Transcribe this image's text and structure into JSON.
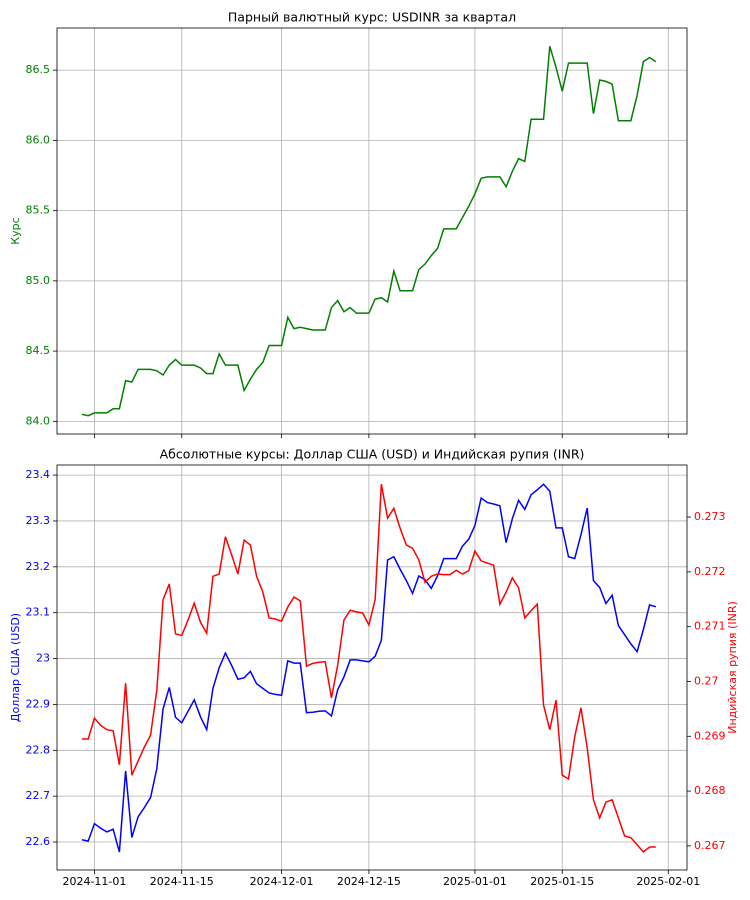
{
  "chart_data": [
    {
      "type": "line",
      "title": "Парный валютный курс: USDINR за квартал",
      "ylabel": "Курс",
      "grid": true,
      "x": [
        "2024-10-30",
        "2024-10-31",
        "2024-11-01",
        "2024-11-02",
        "2024-11-03",
        "2024-11-04",
        "2024-11-05",
        "2024-11-06",
        "2024-11-07",
        "2024-11-08",
        "2024-11-09",
        "2024-11-10",
        "2024-11-11",
        "2024-11-12",
        "2024-11-13",
        "2024-11-14",
        "2024-11-15",
        "2024-11-16",
        "2024-11-17",
        "2024-11-18",
        "2024-11-19",
        "2024-11-20",
        "2024-11-21",
        "2024-11-22",
        "2024-11-23",
        "2024-11-24",
        "2024-11-25",
        "2024-11-26",
        "2024-11-27",
        "2024-11-28",
        "2024-11-29",
        "2024-11-30",
        "2024-12-01",
        "2024-12-02",
        "2024-12-03",
        "2024-12-04",
        "2024-12-05",
        "2024-12-06",
        "2024-12-07",
        "2024-12-08",
        "2024-12-09",
        "2024-12-10",
        "2024-12-11",
        "2024-12-12",
        "2024-12-13",
        "2024-12-14",
        "2024-12-15",
        "2024-12-16",
        "2024-12-17",
        "2024-12-18",
        "2024-12-19",
        "2024-12-20",
        "2024-12-21",
        "2024-12-22",
        "2024-12-23",
        "2024-12-24",
        "2024-12-25",
        "2024-12-26",
        "2024-12-27",
        "2024-12-28",
        "2024-12-29",
        "2024-12-30",
        "2024-12-31",
        "2025-01-01",
        "2025-01-02",
        "2025-01-03",
        "2025-01-04",
        "2025-01-05",
        "2025-01-06",
        "2025-01-07",
        "2025-01-08",
        "2025-01-09",
        "2025-01-10",
        "2025-01-11",
        "2025-01-12",
        "2025-01-13",
        "2025-01-14",
        "2025-01-15",
        "2025-01-16",
        "2025-01-17",
        "2025-01-18",
        "2025-01-19",
        "2025-01-20",
        "2025-01-21",
        "2025-01-22",
        "2025-01-23",
        "2025-01-24",
        "2025-01-25",
        "2025-01-26",
        "2025-01-27",
        "2025-01-28",
        "2025-01-29",
        "2025-01-30"
      ],
      "xlim": [
        "2024-10-26",
        "2025-02-04"
      ],
      "ylim": [
        83.91,
        86.8
      ],
      "yticks": [
        {
          "value": 84,
          "label": "84.0"
        },
        84.5,
        {
          "value": 85,
          "label": "85.0"
        },
        85.5,
        {
          "value": 86,
          "label": "86.0"
        },
        86.5
      ],
      "series": [
        {
          "color": "#008000",
          "values": [
            84.05,
            84.04,
            84.06,
            84.06,
            84.06,
            84.09,
            84.09,
            84.29,
            84.28,
            84.37,
            84.37,
            84.37,
            84.36,
            84.33,
            84.4,
            84.44,
            84.4,
            84.4,
            84.4,
            84.38,
            84.34,
            84.34,
            84.48,
            84.4,
            84.4,
            84.4,
            84.22,
            84.3,
            84.37,
            84.42,
            84.54,
            84.54,
            84.54,
            84.74,
            84.66,
            84.67,
            84.66,
            84.65,
            84.65,
            84.65,
            84.81,
            84.86,
            84.78,
            84.81,
            84.77,
            84.77,
            84.77,
            84.87,
            84.88,
            84.85,
            85.07,
            84.93,
            84.93,
            84.93,
            85.08,
            85.12,
            85.18,
            85.23,
            85.37,
            85.37,
            85.37,
            85.45,
            85.53,
            85.62,
            85.73,
            85.74,
            85.74,
            85.74,
            85.67,
            85.78,
            85.87,
            85.85,
            86.15,
            86.15,
            86.15,
            86.67,
            86.52,
            86.35,
            86.55,
            86.55,
            86.55,
            86.55,
            86.19,
            86.43,
            86.42,
            86.4,
            86.14,
            86.14,
            86.14,
            86.32,
            86.56,
            86.59,
            86.56
          ]
        }
      ]
    },
    {
      "type": "line",
      "title": "Абсолютные курсы: Доллар США (USD) и Индийская рупия (INR)",
      "ylabel": "Доллар США (USD)",
      "y2label": "Индийская рупия (INR)",
      "grid": true,
      "x": [
        "2024-10-30",
        "2024-10-31",
        "2024-11-01",
        "2024-11-02",
        "2024-11-03",
        "2024-11-04",
        "2024-11-05",
        "2024-11-06",
        "2024-11-07",
        "2024-11-08",
        "2024-11-09",
        "2024-11-10",
        "2024-11-11",
        "2024-11-12",
        "2024-11-13",
        "2024-11-14",
        "2024-11-15",
        "2024-11-16",
        "2024-11-17",
        "2024-11-18",
        "2024-11-19",
        "2024-11-20",
        "2024-11-21",
        "2024-11-22",
        "2024-11-23",
        "2024-11-24",
        "2024-11-25",
        "2024-11-26",
        "2024-11-27",
        "2024-11-28",
        "2024-11-29",
        "2024-11-30",
        "2024-12-01",
        "2024-12-02",
        "2024-12-03",
        "2024-12-04",
        "2024-12-05",
        "2024-12-06",
        "2024-12-07",
        "2024-12-08",
        "2024-12-09",
        "2024-12-10",
        "2024-12-11",
        "2024-12-12",
        "2024-12-13",
        "2024-12-14",
        "2024-12-15",
        "2024-12-16",
        "2024-12-17",
        "2024-12-18",
        "2024-12-19",
        "2024-12-20",
        "2024-12-21",
        "2024-12-22",
        "2024-12-23",
        "2024-12-24",
        "2024-12-25",
        "2024-12-26",
        "2024-12-27",
        "2024-12-28",
        "2024-12-29",
        "2024-12-30",
        "2024-12-31",
        "2025-01-01",
        "2025-01-02",
        "2025-01-03",
        "2025-01-04",
        "2025-01-05",
        "2025-01-06",
        "2025-01-07",
        "2025-01-08",
        "2025-01-09",
        "2025-01-10",
        "2025-01-11",
        "2025-01-12",
        "2025-01-13",
        "2025-01-14",
        "2025-01-15",
        "2025-01-16",
        "2025-01-17",
        "2025-01-18",
        "2025-01-19",
        "2025-01-20",
        "2025-01-21",
        "2025-01-22",
        "2025-01-23",
        "2025-01-24",
        "2025-01-25",
        "2025-01-26",
        "2025-01-27",
        "2025-01-28",
        "2025-01-29",
        "2025-01-30"
      ],
      "xlim": [
        "2024-10-26",
        "2025-02-04"
      ],
      "xticks": [
        "2024-11-01",
        "2024-11-15",
        "2024-12-01",
        "2024-12-15",
        "2025-01-01",
        "2025-01-15",
        "2025-02-01"
      ],
      "ylim": [
        22.539,
        23.422
      ],
      "yticks": [
        22.6,
        22.7,
        22.8,
        22.9,
        23.0,
        23.1,
        23.2,
        23.3,
        23.4
      ],
      "y2lim": [
        0.26656,
        0.27395
      ],
      "y2ticks": [
        0.267,
        0.268,
        0.269,
        0.27,
        0.271,
        0.272,
        0.273
      ],
      "series": [
        {
          "color": "#0000ff",
          "values": [
            22.605,
            22.602,
            22.64,
            22.63,
            22.622,
            22.628,
            22.578,
            22.755,
            22.61,
            22.655,
            22.675,
            22.697,
            22.76,
            22.89,
            22.937,
            22.872,
            22.86,
            22.885,
            22.91,
            22.873,
            22.845,
            22.935,
            22.98,
            23.012,
            22.985,
            22.955,
            22.958,
            22.972,
            22.945,
            22.935,
            22.925,
            22.922,
            22.92,
            22.995,
            22.99,
            22.99,
            22.882,
            22.883,
            22.885,
            22.886,
            22.875,
            22.932,
            22.96,
            22.997,
            22.997,
            22.995,
            22.993,
            23.005,
            23.04,
            23.215,
            23.222,
            23.195,
            23.17,
            23.142,
            23.18,
            23.172,
            23.153,
            23.18,
            23.218,
            23.218,
            23.218,
            23.245,
            23.26,
            23.29,
            23.35,
            23.34,
            23.337,
            23.333,
            23.253,
            23.305,
            23.345,
            23.325,
            23.357,
            23.368,
            23.38,
            23.365,
            23.285,
            23.285,
            23.222,
            23.218,
            23.27,
            23.328,
            23.17,
            23.155,
            23.12,
            23.138,
            23.072,
            23.052,
            23.032,
            23.015,
            23.063,
            23.117,
            23.113
          ]
        },
        {
          "color": "#ff0000",
          "axis": "y2",
          "values": [
            0.26895,
            0.26895,
            0.26933,
            0.2692,
            0.26912,
            0.2691,
            0.26848,
            0.26997,
            0.26829,
            0.26855,
            0.2688,
            0.26902,
            0.26984,
            0.27149,
            0.27178,
            0.27087,
            0.27084,
            0.27112,
            0.27143,
            0.27108,
            0.27088,
            0.27192,
            0.27196,
            0.27264,
            0.27231,
            0.27196,
            0.27258,
            0.27249,
            0.27192,
            0.27163,
            0.27116,
            0.27114,
            0.2711,
            0.27136,
            0.27154,
            0.27147,
            0.27028,
            0.27033,
            0.27035,
            0.27036,
            0.2697,
            0.2703,
            0.27112,
            0.2713,
            0.27127,
            0.27125,
            0.27103,
            0.27149,
            0.2736,
            0.27298,
            0.27316,
            0.2728,
            0.27249,
            0.27243,
            0.27222,
            0.27181,
            0.27192,
            0.27196,
            0.27195,
            0.27195,
            0.27203,
            0.27196,
            0.27202,
            0.27238,
            0.2722,
            0.27216,
            0.27212,
            0.27141,
            0.27163,
            0.27189,
            0.27171,
            0.27116,
            0.27129,
            0.27141,
            0.26957,
            0.26912,
            0.26966,
            0.26829,
            0.26822,
            0.26899,
            0.26952,
            0.26879,
            0.26784,
            0.26751,
            0.2678,
            0.26784,
            0.26751,
            0.26718,
            0.26715,
            0.26702,
            0.26689,
            0.26698,
            0.26698
          ]
        }
      ]
    }
  ]
}
